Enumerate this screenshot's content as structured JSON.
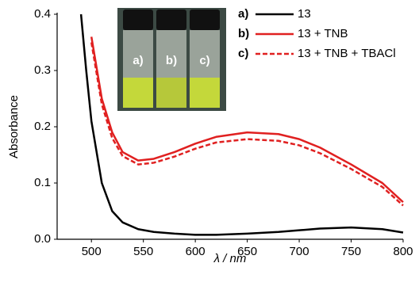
{
  "chart_data": {
    "type": "line",
    "x_label": "λ / nm",
    "y_label": "Absorbance",
    "x": [
      490,
      495,
      500,
      510,
      520,
      530,
      545,
      560,
      580,
      600,
      620,
      650,
      680,
      700,
      720,
      750,
      780,
      800
    ],
    "series": [
      {
        "label": "a)",
        "name": "13",
        "color": "#000000",
        "dash": false,
        "values": [
          0.4,
          0.3,
          0.21,
          0.1,
          0.05,
          0.03,
          0.018,
          0.013,
          0.01,
          0.008,
          0.008,
          0.01,
          0.013,
          0.016,
          0.019,
          0.021,
          0.018,
          0.012
        ]
      },
      {
        "label": "b)",
        "name": "13 + TNB",
        "color": "#e02020",
        "dash": false,
        "values": [
          null,
          null,
          0.36,
          0.25,
          0.19,
          0.155,
          0.14,
          0.143,
          0.155,
          0.17,
          0.182,
          0.19,
          0.187,
          0.178,
          0.163,
          0.133,
          0.1,
          0.066
        ]
      },
      {
        "label": "c)",
        "name": "13 + TNB + TBACl",
        "color": "#e02020",
        "dash": true,
        "values": [
          null,
          null,
          0.35,
          0.24,
          0.18,
          0.148,
          0.133,
          0.136,
          0.147,
          0.161,
          0.172,
          0.178,
          0.175,
          0.167,
          0.153,
          0.125,
          0.093,
          0.06
        ]
      }
    ],
    "xlim": [
      467,
      800
    ],
    "ylim": [
      0,
      0.4
    ],
    "xticks": [
      500,
      550,
      600,
      650,
      700,
      750,
      800
    ],
    "yticks": [
      {
        "value": 0,
        "label": "0.0"
      },
      0.1,
      0.2,
      0.3,
      0.4
    ],
    "grid": false
  }
}
